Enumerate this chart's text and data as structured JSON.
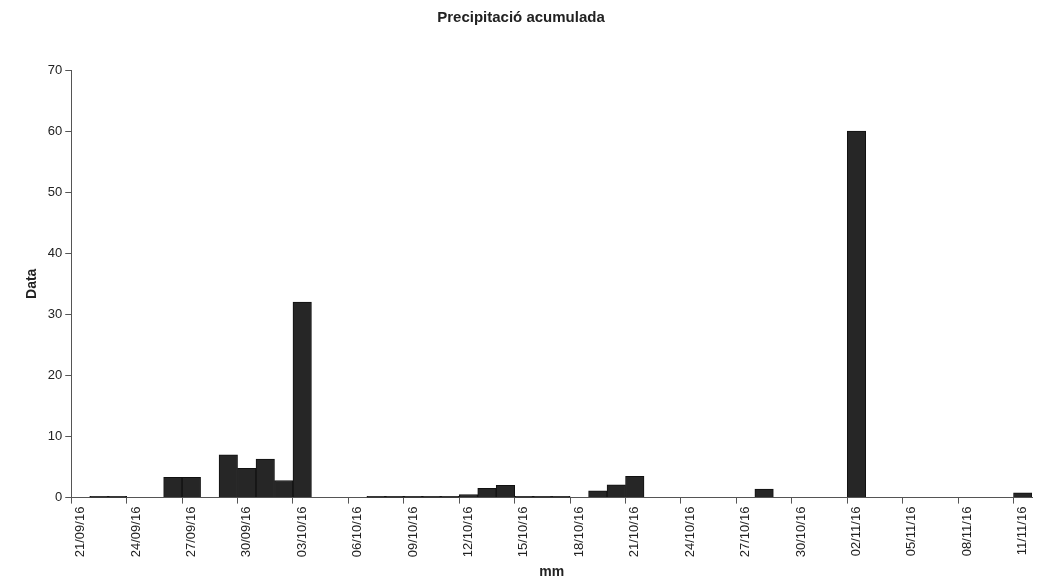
{
  "chart_data": {
    "type": "bar",
    "title": "Precipitació acumulada",
    "xlabel": "mm",
    "ylabel": "Data",
    "categories": [
      "21/09/16",
      null,
      null,
      "24/09/16",
      null,
      null,
      "27/09/16",
      null,
      null,
      "30/09/16",
      null,
      null,
      "03/10/16",
      null,
      null,
      "06/10/16",
      null,
      null,
      "09/10/16",
      null,
      null,
      "12/10/16",
      null,
      null,
      "15/10/16",
      null,
      null,
      "18/10/16",
      null,
      null,
      "21/10/16",
      null,
      null,
      "24/10/16",
      null,
      null,
      "27/10/16",
      null,
      null,
      "30/10/16",
      null,
      null,
      "02/11/16",
      null,
      null,
      "05/11/16",
      null,
      null,
      "08/11/16",
      null,
      null,
      "11/11/16"
    ],
    "values": [
      0,
      0.2,
      0.2,
      0,
      0,
      3.3,
      3.3,
      0,
      7,
      4.8,
      6.3,
      2.8,
      32,
      0,
      0,
      0,
      0.2,
      0.2,
      0.2,
      0.2,
      0.2,
      0.5,
      1.5,
      2,
      0.2,
      0.2,
      0.2,
      0,
      1.1,
      2.1,
      3.5,
      0,
      0,
      0,
      0,
      0,
      0,
      1.4,
      0,
      0,
      0,
      0,
      60,
      0,
      0,
      0,
      0,
      0,
      0,
      0,
      0,
      0.8
    ],
    "color": "#262626",
    "ylim": [
      0,
      70
    ],
    "yticks": [
      0,
      10,
      20,
      30,
      40,
      50,
      60,
      70
    ],
    "grid": false,
    "legend": false
  }
}
